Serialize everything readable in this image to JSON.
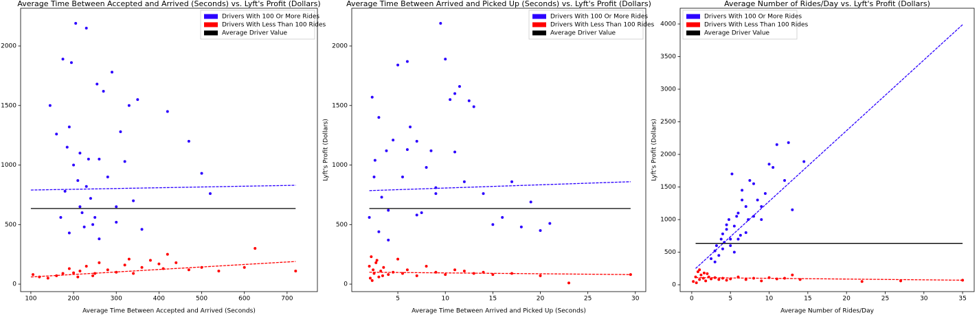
{
  "chart_data": [
    {
      "type": "scatter",
      "title": "Average Time Between Accepted and Arrived (Seconds) vs. Lyft's Profit (Dollars)",
      "xlabel": "Average Time Between Accepted and Arrived (Seconds)",
      "xlim": [
        76,
        771
      ],
      "ylim": [
        -63,
        2317
      ],
      "xticks": [
        100,
        200,
        300,
        400,
        500,
        600,
        700
      ],
      "yticks": [
        0,
        500,
        1000,
        1500,
        2000
      ],
      "legend": "upper right",
      "series": [
        {
          "name": "Drivers With 100 Or More Rides",
          "color": "#2b00ff",
          "style": "points",
          "x": [
            145,
            160,
            175,
            185,
            190,
            195,
            200,
            205,
            210,
            215,
            220,
            225,
            230,
            235,
            240,
            250,
            255,
            260,
            270,
            280,
            290,
            300,
            310,
            320,
            330,
            340,
            350,
            360,
            420,
            470,
            500,
            520,
            215,
            230,
            190,
            170,
            260,
            300,
            180,
            245
          ],
          "y": [
            1500,
            1260,
            1890,
            1150,
            1320,
            1860,
            1000,
            2190,
            870,
            1100,
            600,
            480,
            2150,
            1050,
            720,
            560,
            1680,
            380,
            1620,
            900,
            1780,
            520,
            1280,
            1030,
            1500,
            700,
            1550,
            460,
            1450,
            1200,
            930,
            760,
            650,
            820,
            430,
            560,
            1050,
            650,
            780,
            500
          ],
          "fit": {
            "x": [
              100,
              720
            ],
            "y": [
              790,
              830
            ]
          }
        },
        {
          "name": "Drivers With Less Than 100 Rides",
          "color": "#ff0000",
          "style": "points",
          "x": [
            105,
            120,
            140,
            160,
            175,
            190,
            200,
            215,
            230,
            245,
            260,
            280,
            300,
            320,
            340,
            360,
            380,
            400,
            420,
            440,
            470,
            500,
            540,
            600,
            625,
            720,
            210,
            250,
            330,
            410
          ],
          "y": [
            80,
            60,
            50,
            70,
            90,
            130,
            95,
            110,
            150,
            70,
            180,
            120,
            100,
            160,
            90,
            140,
            200,
            170,
            250,
            180,
            120,
            140,
            110,
            140,
            300,
            110,
            60,
            90,
            210,
            130
          ],
          "fit": {
            "x": [
              100,
              720
            ],
            "y": [
              60,
              190
            ]
          }
        },
        {
          "name": "Average Driver Value",
          "color": "#000000",
          "style": "line",
          "x": [
            100,
            720
          ],
          "y": [
            635,
            635
          ]
        }
      ]
    },
    {
      "type": "scatter",
      "title": "Average Time Between Arrived and Picked Up (Seconds) vs. Lyft's Profit (Dollars)",
      "xlabel": "Average Time Between Arrived and Picked Up (Seconds)",
      "ylabel": "Lyft's Profit (Dollars)",
      "xlim": [
        0.15,
        31.1
      ],
      "ylim": [
        -63,
        2317
      ],
      "xticks": [
        5,
        10,
        15,
        20,
        25,
        30
      ],
      "yticks": [
        0,
        500,
        1000,
        1500,
        2000
      ],
      "legend": "upper right",
      "series": [
        {
          "name": "Drivers With 100 Or More Rides",
          "color": "#2b00ff",
          "style": "points",
          "x": [
            2,
            2.3,
            2.6,
            3,
            3.3,
            3.8,
            4,
            4.5,
            5,
            5.5,
            6,
            6.3,
            7,
            7.5,
            8,
            8.5,
            9,
            9.5,
            10,
            10.5,
            11,
            11.5,
            12,
            12.5,
            13,
            14,
            15,
            16,
            17,
            18,
            19,
            20,
            21,
            3,
            6,
            9,
            2.5,
            4,
            7,
            11
          ],
          "y": [
            560,
            1570,
            1040,
            1400,
            730,
            1120,
            620,
            1210,
            1840,
            900,
            1870,
            1320,
            1200,
            600,
            980,
            1120,
            760,
            2190,
            1890,
            1550,
            1600,
            1660,
            860,
            1540,
            1490,
            760,
            500,
            560,
            860,
            480,
            690,
            450,
            510,
            440,
            1130,
            810,
            900,
            370,
            580,
            1110
          ],
          "fit": {
            "x": [
              2,
              29.5
            ],
            "y": [
              785,
              860
            ]
          }
        },
        {
          "name": "Drivers With Less Than 100 Rides",
          "color": "#ff0000",
          "style": "points",
          "x": [
            2,
            2.1,
            2.2,
            2.4,
            2.5,
            2.7,
            3,
            3.2,
            3.5,
            4,
            4.5,
            5,
            5.5,
            6,
            7,
            8,
            9,
            10,
            11,
            12,
            13,
            14,
            15,
            17,
            20,
            23,
            29.5,
            2.3,
            2.8,
            3.4
          ],
          "y": [
            150,
            50,
            230,
            120,
            90,
            180,
            60,
            110,
            140,
            80,
            100,
            210,
            90,
            120,
            70,
            150,
            100,
            80,
            120,
            110,
            90,
            100,
            80,
            90,
            70,
            10,
            80,
            30,
            200,
            70
          ],
          "fit": {
            "x": [
              2,
              29.5
            ],
            "y": [
              100,
              80
            ]
          }
        },
        {
          "name": "Average Driver Value",
          "color": "#000000",
          "style": "line",
          "x": [
            2,
            29.5
          ],
          "y": [
            635,
            635
          ]
        }
      ]
    },
    {
      "type": "scatter",
      "title": "Average Number of Rides/Day vs. Lyft's Profit (Dollars)",
      "xlabel": "Average Number of Rides/Day",
      "ylabel": "Lyft's Profit (Dollars)",
      "xlim": [
        -1.5,
        36.5
      ],
      "ylim": [
        -105,
        4242
      ],
      "xticks": [
        0,
        5,
        10,
        15,
        20,
        25,
        30,
        35
      ],
      "yticks": [
        0,
        500,
        1000,
        1500,
        2000,
        2500,
        3000,
        3500,
        4000
      ],
      "legend": "upper left",
      "series": [
        {
          "name": "Drivers With 100 Or More Rides",
          "color": "#2b00ff",
          "style": "points",
          "x": [
            2.5,
            3,
            3.2,
            3.5,
            3.8,
            4,
            4.2,
            4.5,
            4.8,
            5,
            5.2,
            5.5,
            5.8,
            6,
            6.3,
            6.5,
            7,
            7.3,
            7.5,
            8,
            8.5,
            9,
            9.5,
            10,
            10.5,
            11,
            12,
            12.5,
            13,
            14.5,
            3,
            4,
            5,
            6,
            7,
            8,
            4.5,
            5.5,
            6.5,
            9
          ],
          "y": [
            400,
            520,
            600,
            450,
            700,
            780,
            650,
            850,
            1000,
            700,
            1700,
            900,
            1050,
            1100,
            760,
            1450,
            1200,
            1000,
            1600,
            1550,
            1300,
            1000,
            1400,
            1850,
            1800,
            2150,
            1600,
            2180,
            1150,
            1890,
            350,
            550,
            600,
            700,
            800,
            1050,
            920,
            500,
            1300,
            1200
          ],
          "fit": {
            "x": [
              0.5,
              35
            ],
            "y": [
              250,
              3990
            ]
          }
        },
        {
          "name": "Drivers With Less Than 100 Rides",
          "color": "#ff0000",
          "style": "points",
          "x": [
            0.2,
            0.5,
            0.8,
            1,
            1.2,
            1.5,
            1.8,
            2,
            2.2,
            2.5,
            3,
            3.5,
            4,
            4.5,
            5,
            6,
            7,
            8,
            9,
            10,
            11,
            12,
            13,
            14,
            22,
            27,
            35,
            1,
            0.6,
            1.6
          ],
          "y": [
            50,
            120,
            200,
            80,
            150,
            100,
            60,
            170,
            120,
            90,
            110,
            80,
            100,
            70,
            90,
            120,
            80,
            100,
            60,
            110,
            90,
            100,
            150,
            80,
            50,
            60,
            70,
            230,
            30,
            180
          ],
          "fit": {
            "x": [
              0.5,
              35
            ],
            "y": [
              110,
              70
            ]
          }
        },
        {
          "name": "Average Driver Value",
          "color": "#000000",
          "style": "line",
          "x": [
            0.5,
            35
          ],
          "y": [
            635,
            635
          ]
        }
      ]
    }
  ]
}
